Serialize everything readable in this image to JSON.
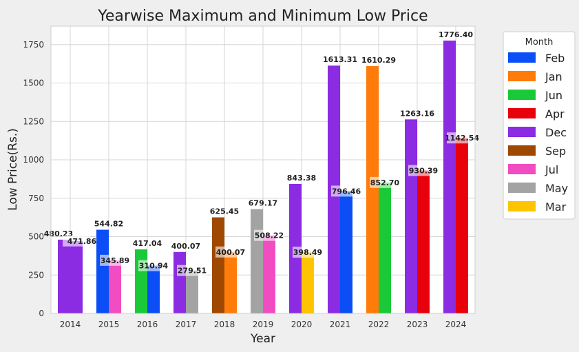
{
  "chart_data": {
    "type": "bar",
    "title": "Yearwise Maximum and Minimum Low Price",
    "xlabel": "Year",
    "ylabel": "Low Price(Rs.)",
    "ylim": [
      0,
      1870
    ],
    "yticks": [
      0,
      250,
      500,
      750,
      1000,
      1250,
      1500,
      1750
    ],
    "categories": [
      "2014",
      "2015",
      "2016",
      "2017",
      "2018",
      "2019",
      "2020",
      "2021",
      "2022",
      "2023",
      "2024"
    ],
    "grid": true,
    "legend": {
      "title": "Month",
      "placement": "right",
      "entries": [
        {
          "name": "Feb",
          "color": "#0b4ef5"
        },
        {
          "name": "Jan",
          "color": "#ff7c0a"
        },
        {
          "name": "Jun",
          "color": "#1ac938"
        },
        {
          "name": "Apr",
          "color": "#e8000b"
        },
        {
          "name": "Dec",
          "color": "#8b2be2"
        },
        {
          "name": "Sep",
          "color": "#9f4800"
        },
        {
          "name": "Jul",
          "color": "#f14cc1"
        },
        {
          "name": "May",
          "color": "#a3a3a3"
        },
        {
          "name": "Mar",
          "color": "#ffc400"
        }
      ]
    },
    "bars": [
      {
        "year": "2014",
        "max": {
          "value": 480.23,
          "label": "480.23",
          "month": "Dec"
        },
        "min": {
          "value": 471.86,
          "label": "471.86",
          "month": "Dec"
        }
      },
      {
        "year": "2015",
        "max": {
          "value": 544.82,
          "label": "544.82",
          "month": "Feb"
        },
        "min": {
          "value": 345.89,
          "label": "345.89",
          "month": "Jul"
        }
      },
      {
        "year": "2016",
        "max": {
          "value": 417.04,
          "label": "417.04",
          "month": "Jun"
        },
        "min": {
          "value": 310.94,
          "label": "310.94",
          "month": "Feb"
        }
      },
      {
        "year": "2017",
        "max": {
          "value": 400.07,
          "label": "400.07",
          "month": "Dec"
        },
        "min": {
          "value": 279.51,
          "label": "279.51",
          "month": "May"
        }
      },
      {
        "year": "2018",
        "max": {
          "value": 625.45,
          "label": "625.45",
          "month": "Sep"
        },
        "min": {
          "value": 400.07,
          "label": "400.07",
          "month": "Jan"
        }
      },
      {
        "year": "2019",
        "max": {
          "value": 679.17,
          "label": "679.17",
          "month": "May"
        },
        "min": {
          "value": 508.22,
          "label": "508.22",
          "month": "Jul"
        }
      },
      {
        "year": "2020",
        "max": {
          "value": 843.38,
          "label": "843.38",
          "month": "Dec"
        },
        "min": {
          "value": 398.49,
          "label": "398.49",
          "month": "Mar"
        }
      },
      {
        "year": "2021",
        "max": {
          "value": 1613.31,
          "label": "1613.31",
          "month": "Dec"
        },
        "min": {
          "value": 796.46,
          "label": "796.46",
          "month": "Feb"
        }
      },
      {
        "year": "2022",
        "max": {
          "value": 1610.29,
          "label": "1610.29",
          "month": "Jan"
        },
        "min": {
          "value": 852.7,
          "label": "852.70",
          "month": "Jun"
        }
      },
      {
        "year": "2023",
        "max": {
          "value": 1263.16,
          "label": "1263.16",
          "month": "Dec"
        },
        "min": {
          "value": 930.39,
          "label": "930.39",
          "month": "Apr"
        }
      },
      {
        "year": "2024",
        "max": {
          "value": 1776.4,
          "label": "1776.40",
          "month": "Dec"
        },
        "min": {
          "value": 1142.54,
          "label": "1142.54",
          "month": "Apr"
        }
      }
    ]
  }
}
